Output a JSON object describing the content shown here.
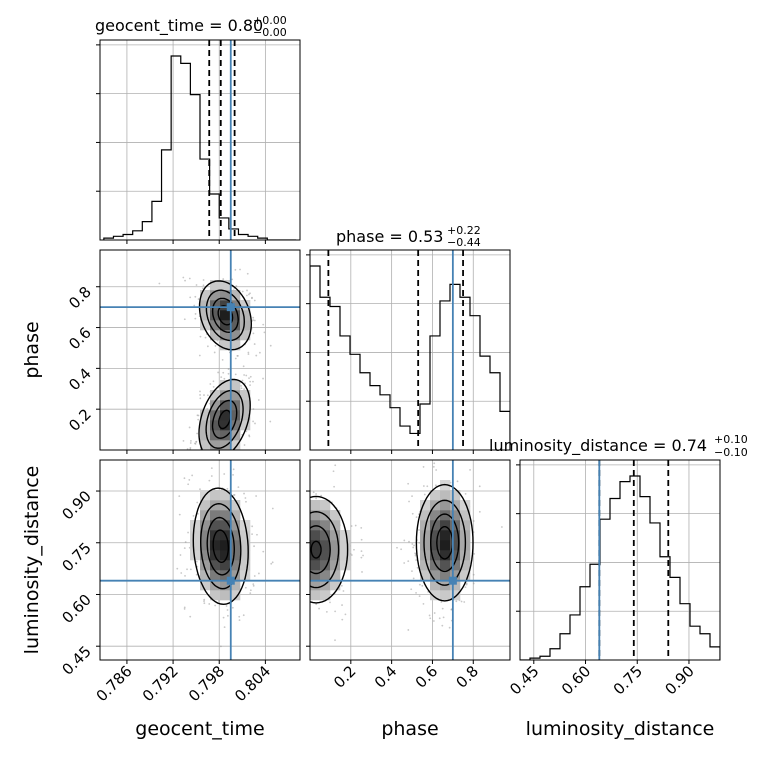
{
  "chart_data": {
    "type": "corner",
    "parameters": [
      "geocent_time",
      "phase",
      "luminosity_distance"
    ],
    "truth": {
      "geocent_time": 0.7995,
      "phase": 0.7,
      "luminosity_distance": 0.64
    },
    "titles": {
      "geocent_time": {
        "text": "geocent_time = 0.80",
        "sup": "+0.00",
        "sub": "−0.00"
      },
      "phase": {
        "text": "phase = 0.53",
        "sup": "+0.22",
        "sub": "−0.44"
      },
      "luminosity_distance": {
        "text": "luminosity_distance = 0.74",
        "sup": "+0.10",
        "sub": "−0.10"
      }
    },
    "axis_labels": {
      "geocent_time": "geocent_time",
      "phase": "phase",
      "luminosity_distance": "luminosity_distance"
    },
    "ranges": {
      "geocent_time": [
        0.7825,
        0.8085
      ],
      "phase": [
        0.0,
        0.98
      ],
      "luminosity_distance": [
        0.41,
        0.99
      ]
    },
    "ticks": {
      "geocent_time": [
        "0.786",
        "0.792",
        "0.798",
        "0.804"
      ],
      "phase_x": [
        "0.2",
        "0.4",
        "0.6",
        "0.8"
      ],
      "phase_y": [
        "0.2",
        "0.4",
        "0.6",
        "0.8"
      ],
      "luminosity_distance": [
        "0.45",
        "0.60",
        "0.75",
        "0.90"
      ]
    },
    "histograms": {
      "geocent_time": {
        "edges_from": 0.783,
        "bin_width": 0.00125,
        "counts": [
          1,
          2,
          3,
          5,
          10,
          21,
          49,
          100,
          96,
          79,
          44,
          25,
          12,
          6,
          3,
          2,
          1,
          0,
          0,
          0
        ]
      },
      "phase": {
        "edges_from": 0.0,
        "bin_width": 0.049,
        "counts": [
          100,
          83,
          78,
          62,
          52,
          42,
          35,
          30,
          23,
          13,
          9,
          25,
          62,
          81,
          90,
          83,
          73,
          51,
          42,
          21
        ]
      },
      "luminosity_distance": {
        "edges_from": 0.41,
        "bin_width": 0.029,
        "counts": [
          0,
          1,
          2,
          6,
          14,
          24,
          39,
          51,
          75,
          86,
          95,
          98,
          87,
          73,
          55,
          44,
          30,
          18,
          14,
          7
        ]
      }
    },
    "quantiles": {
      "geocent_time": [
        0.7967,
        0.7982,
        0.8
      ],
      "phase": [
        0.09,
        0.53,
        0.75
      ],
      "luminosity_distance": [
        0.64,
        0.74,
        0.84
      ]
    },
    "modes_2d": {
      "phase_vs_geocent_time": [
        [
          0.7988,
          0.65
        ],
        [
          0.7987,
          0.13
        ]
      ],
      "luminosity_distance_vs_geocent_time": [
        [
          0.7982,
          0.74
        ]
      ],
      "luminosity_distance_vs_phase": [
        [
          0.06,
          0.73
        ],
        [
          0.66,
          0.75
        ]
      ]
    },
    "colors": {
      "truth": "#4682b4",
      "hist": "#000000",
      "quantile": "#000000",
      "grid": "#b0b0b0",
      "scatter": "#9a9a9a"
    },
    "grid": true
  }
}
